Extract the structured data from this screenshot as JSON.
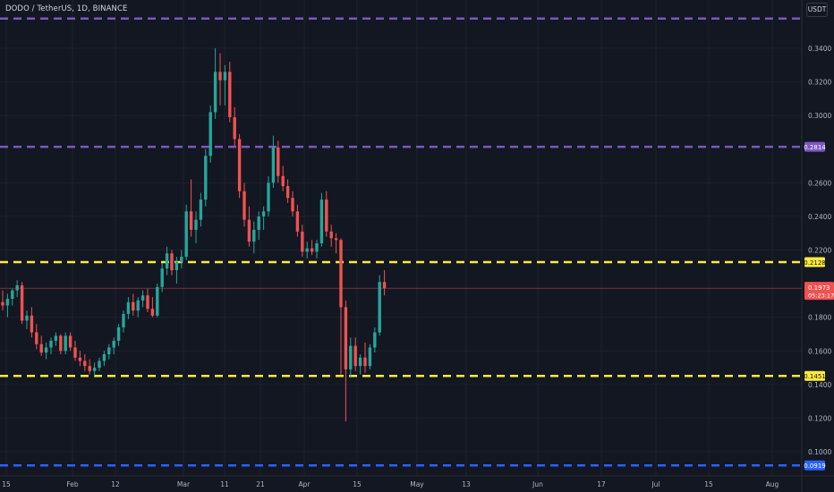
{
  "header": {
    "symbol_title": "DODO / TetherUS, 1D, BINANCE",
    "currency": "USDT"
  },
  "colors": {
    "background": "#131722",
    "grid": "#1e222d",
    "up_candle": "#26a69a",
    "down_candle": "#ef5350",
    "resistance_purple": "#7e57c2",
    "support_yellow": "#ffeb3b",
    "support_blue": "#2962ff",
    "current_price": "#ef5350"
  },
  "y_axis": {
    "ticks": [
      "0.3400",
      "0.3200",
      "0.3000",
      "0.2600",
      "0.2400",
      "0.2200",
      "0.1800",
      "0.1600",
      "0.1400",
      "0.1200",
      "0.1000"
    ]
  },
  "x_axis": {
    "ticks": [
      "15",
      "Feb",
      "12",
      "Mar",
      "11",
      "21",
      "Apr",
      "15",
      "May",
      "13",
      "Jun",
      "17",
      "Jul",
      "15",
      "Aug"
    ]
  },
  "horizontal_levels": [
    {
      "price": 0.3577,
      "style": "dashed",
      "color": "#7e57c2",
      "label": ""
    },
    {
      "price": 0.2814,
      "style": "dashed",
      "color": "#7e57c2",
      "label": "0.2814"
    },
    {
      "price": 0.2128,
      "style": "dashed",
      "color": "#ffeb3b",
      "label": "0.2128"
    },
    {
      "price": 0.1451,
      "style": "dashed",
      "color": "#ffeb3b",
      "label": "0.1451"
    },
    {
      "price": 0.0919,
      "style": "dashed",
      "color": "#2962ff",
      "label": "0.0919"
    }
  ],
  "current_price": {
    "value": "0.1973",
    "countdown": "05:23:17"
  },
  "chart_data": {
    "type": "candlestick",
    "symbol": "DODO / TetherUS",
    "timeframe": "1D",
    "exchange": "BINANCE",
    "price_range": [
      0.086,
      0.368
    ],
    "candles": [
      [
        0.189,
        0.196,
        0.184,
        0.187
      ],
      [
        0.187,
        0.194,
        0.18,
        0.191
      ],
      [
        0.191,
        0.197,
        0.187,
        0.196
      ],
      [
        0.196,
        0.202,
        0.192,
        0.199
      ],
      [
        0.199,
        0.201,
        0.176,
        0.178
      ],
      [
        0.178,
        0.184,
        0.173,
        0.181
      ],
      [
        0.181,
        0.186,
        0.168,
        0.171
      ],
      [
        0.171,
        0.176,
        0.161,
        0.164
      ],
      [
        0.164,
        0.169,
        0.157,
        0.159
      ],
      [
        0.159,
        0.165,
        0.155,
        0.162
      ],
      [
        0.162,
        0.168,
        0.158,
        0.166
      ],
      [
        0.166,
        0.171,
        0.163,
        0.169
      ],
      [
        0.169,
        0.17,
        0.158,
        0.16
      ],
      [
        0.16,
        0.171,
        0.158,
        0.169
      ],
      [
        0.169,
        0.171,
        0.16,
        0.162
      ],
      [
        0.162,
        0.166,
        0.154,
        0.156
      ],
      [
        0.156,
        0.16,
        0.151,
        0.154
      ],
      [
        0.154,
        0.158,
        0.148,
        0.151
      ],
      [
        0.151,
        0.155,
        0.146,
        0.148
      ],
      [
        0.148,
        0.153,
        0.145,
        0.15
      ],
      [
        0.15,
        0.156,
        0.148,
        0.154
      ],
      [
        0.154,
        0.16,
        0.151,
        0.158
      ],
      [
        0.158,
        0.164,
        0.155,
        0.162
      ],
      [
        0.162,
        0.168,
        0.158,
        0.166
      ],
      [
        0.166,
        0.176,
        0.163,
        0.174
      ],
      [
        0.174,
        0.184,
        0.171,
        0.182
      ],
      [
        0.182,
        0.192,
        0.179,
        0.189
      ],
      [
        0.189,
        0.194,
        0.181,
        0.184
      ],
      [
        0.184,
        0.192,
        0.18,
        0.19
      ],
      [
        0.19,
        0.196,
        0.186,
        0.193
      ],
      [
        0.193,
        0.197,
        0.183,
        0.185
      ],
      [
        0.185,
        0.192,
        0.18,
        0.181
      ],
      [
        0.181,
        0.2,
        0.18,
        0.198
      ],
      [
        0.198,
        0.212,
        0.195,
        0.209
      ],
      [
        0.209,
        0.222,
        0.205,
        0.218
      ],
      [
        0.218,
        0.22,
        0.205,
        0.208
      ],
      [
        0.208,
        0.216,
        0.2,
        0.213
      ],
      [
        0.213,
        0.22,
        0.209,
        0.216
      ],
      [
        0.216,
        0.247,
        0.214,
        0.243
      ],
      [
        0.243,
        0.262,
        0.228,
        0.232
      ],
      [
        0.232,
        0.243,
        0.224,
        0.238
      ],
      [
        0.238,
        0.254,
        0.234,
        0.25
      ],
      [
        0.25,
        0.28,
        0.246,
        0.276
      ],
      [
        0.276,
        0.306,
        0.272,
        0.302
      ],
      [
        0.302,
        0.34,
        0.298,
        0.326
      ],
      [
        0.326,
        0.337,
        0.306,
        0.321
      ],
      [
        0.321,
        0.33,
        0.306,
        0.326
      ],
      [
        0.326,
        0.332,
        0.296,
        0.299
      ],
      [
        0.299,
        0.305,
        0.282,
        0.286
      ],
      [
        0.286,
        0.289,
        0.251,
        0.255
      ],
      [
        0.255,
        0.26,
        0.234,
        0.238
      ],
      [
        0.238,
        0.246,
        0.222,
        0.225
      ],
      [
        0.225,
        0.237,
        0.218,
        0.232
      ],
      [
        0.232,
        0.243,
        0.226,
        0.24
      ],
      [
        0.24,
        0.246,
        0.232,
        0.243
      ],
      [
        0.243,
        0.264,
        0.24,
        0.26
      ],
      [
        0.26,
        0.288,
        0.257,
        0.281
      ],
      [
        0.281,
        0.285,
        0.26,
        0.264
      ],
      [
        0.264,
        0.27,
        0.255,
        0.258
      ],
      [
        0.258,
        0.262,
        0.248,
        0.251
      ],
      [
        0.251,
        0.255,
        0.24,
        0.243
      ],
      [
        0.243,
        0.247,
        0.228,
        0.231
      ],
      [
        0.231,
        0.235,
        0.216,
        0.219
      ],
      [
        0.219,
        0.225,
        0.215,
        0.221
      ],
      [
        0.221,
        0.226,
        0.217,
        0.219
      ],
      [
        0.219,
        0.226,
        0.215,
        0.224
      ],
      [
        0.224,
        0.254,
        0.222,
        0.25
      ],
      [
        0.25,
        0.255,
        0.228,
        0.231
      ],
      [
        0.231,
        0.235,
        0.222,
        0.227
      ],
      [
        0.227,
        0.23,
        0.218,
        0.226
      ],
      [
        0.226,
        0.227,
        0.146,
        0.186
      ],
      [
        0.186,
        0.19,
        0.118,
        0.149
      ],
      [
        0.149,
        0.168,
        0.144,
        0.163
      ],
      [
        0.163,
        0.168,
        0.148,
        0.151
      ],
      [
        0.151,
        0.158,
        0.146,
        0.156
      ],
      [
        0.156,
        0.165,
        0.147,
        0.151
      ],
      [
        0.151,
        0.164,
        0.149,
        0.162
      ],
      [
        0.162,
        0.174,
        0.159,
        0.171
      ],
      [
        0.171,
        0.205,
        0.169,
        0.201
      ],
      [
        0.201,
        0.208,
        0.193,
        0.1973
      ]
    ]
  }
}
